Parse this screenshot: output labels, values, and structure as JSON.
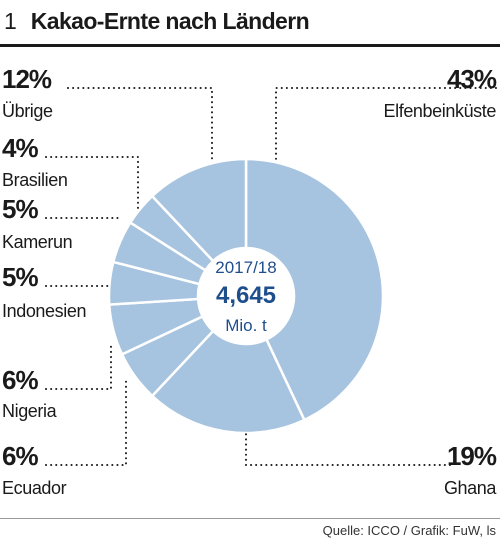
{
  "header": {
    "figure_number": "1",
    "title": "Kakao-Ernte nach Ländern"
  },
  "footer": {
    "source": "Quelle: ICCO / Grafik: FuW, ls"
  },
  "colors": {
    "segment_fill": "#a6c3df",
    "center_text": "#1f4e8c",
    "text": "#1a1a1a"
  },
  "chart_data": {
    "type": "pie",
    "title": "Kakao-Ernte nach Ländern",
    "center": {
      "period": "2017/18",
      "total": "4,645",
      "unit": "Mio. t"
    },
    "slices": [
      {
        "name": "Elfenbeinküste",
        "value": 43,
        "label": "43%"
      },
      {
        "name": "Ghana",
        "value": 19,
        "label": "19%"
      },
      {
        "name": "Ecuador",
        "value": 6,
        "label": "6%"
      },
      {
        "name": "Nigeria",
        "value": 6,
        "label": "6%"
      },
      {
        "name": "Indonesien",
        "value": 5,
        "label": "5%"
      },
      {
        "name": "Kamerun",
        "value": 5,
        "label": "5%"
      },
      {
        "name": "Brasilien",
        "value": 4,
        "label": "4%"
      },
      {
        "name": "Übrige",
        "value": 12,
        "label": "12%"
      }
    ]
  }
}
